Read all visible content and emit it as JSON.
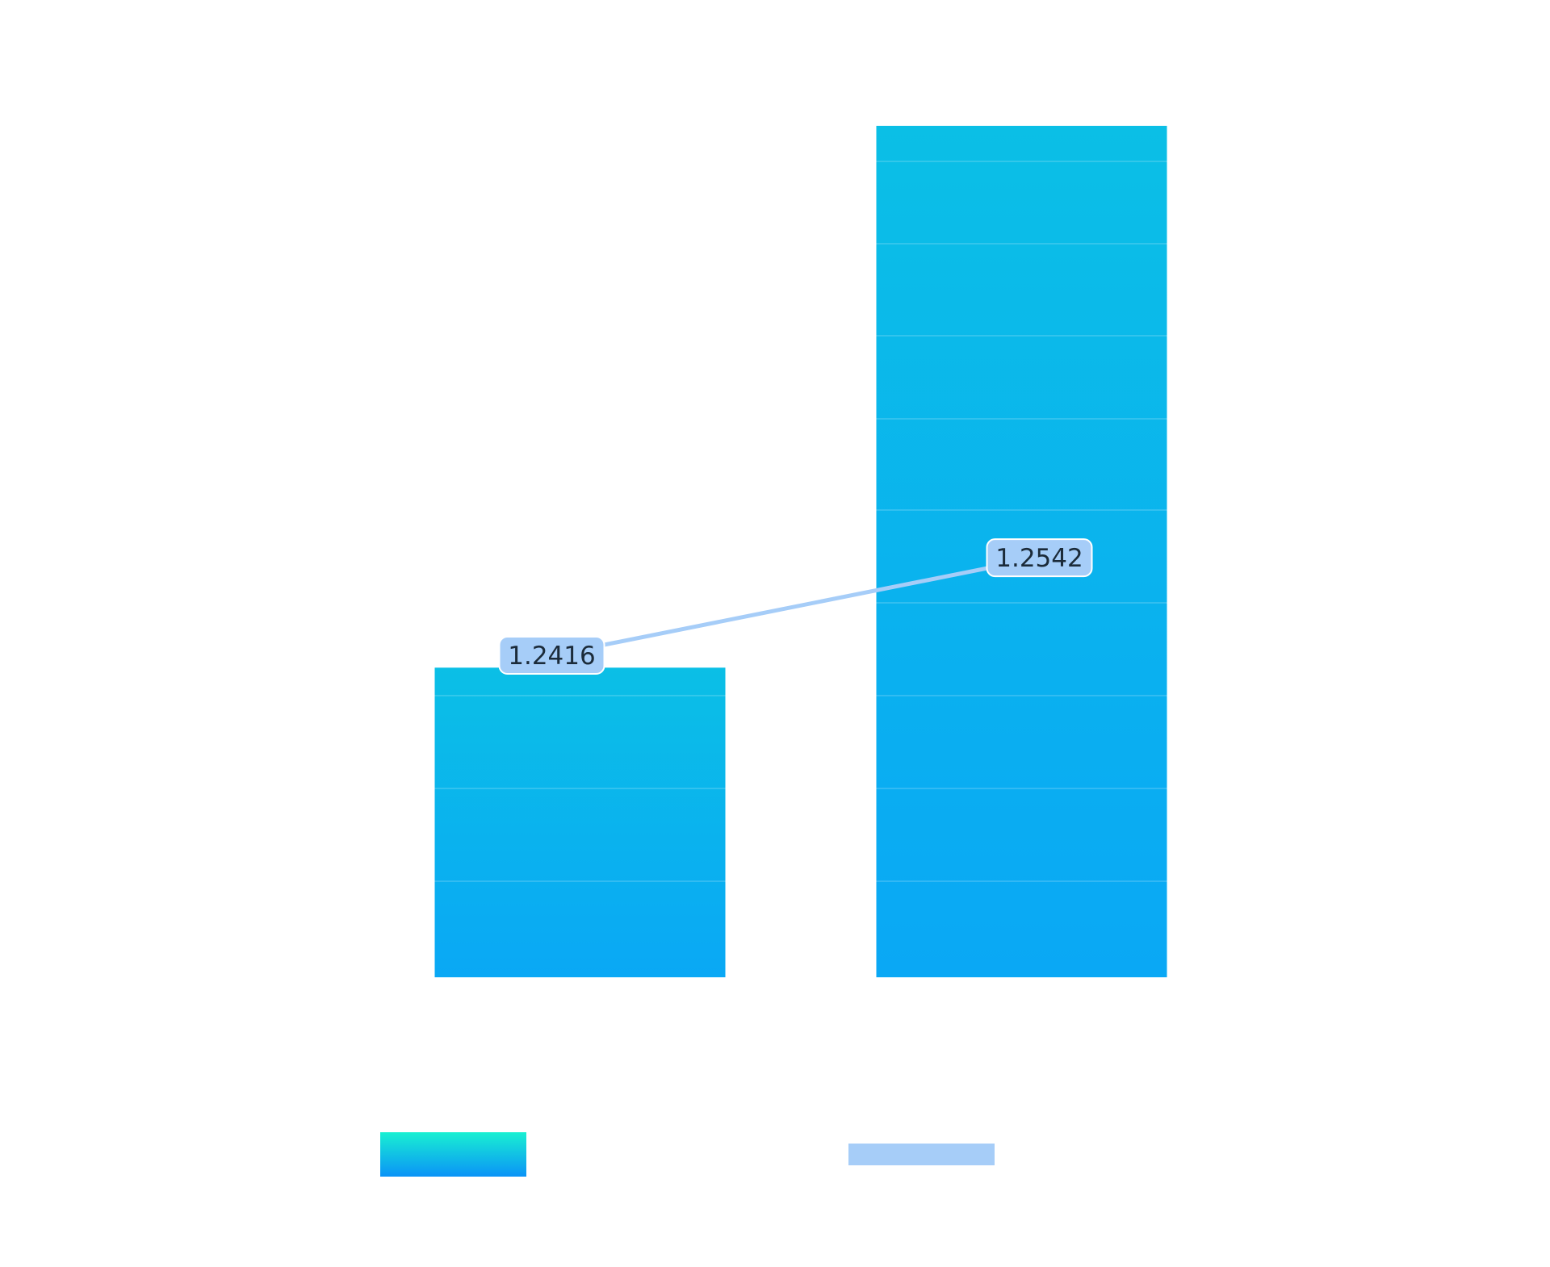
{
  "chart_data": {
    "type": "bar",
    "categories": [
      "",
      ""
    ],
    "series": [
      {
        "type": "bar",
        "values": [
          1.24,
          1.31
        ]
      },
      {
        "type": "line",
        "values": [
          1.2416,
          1.2542
        ]
      }
    ],
    "data_labels": [
      "1.2416",
      "1.2542"
    ],
    "ylim": [
      1.2,
      1.32
    ],
    "grid": true,
    "legend_position": "bottom",
    "colors": {
      "bar_top": "#0bbfe6",
      "bar_bottom": "#0aa8f5",
      "legend_bar_top": "#19f0d2",
      "legend_bar_bottom": "#0a93f7",
      "line": "#a6cdf8",
      "label_fill": "#a6cdf8",
      "gridline": "#ffffff"
    }
  }
}
